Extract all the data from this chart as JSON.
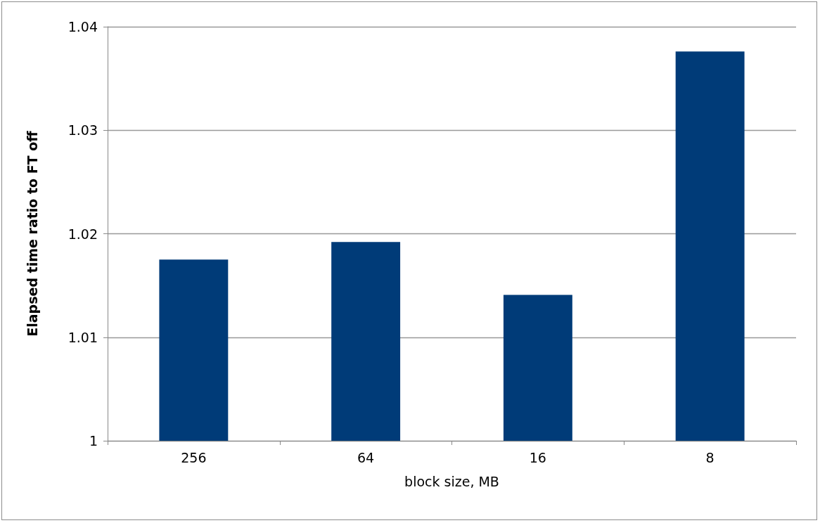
{
  "chart_data": {
    "type": "bar",
    "xlabel": "block size, MB",
    "ylabel": "Elapsed time ratio to FT off",
    "categories": [
      "256",
      "64",
      "16",
      "8"
    ],
    "values": [
      1.0175,
      1.0192,
      1.0141,
      1.0376
    ],
    "color": "#003b78",
    "ylim": [
      1,
      1.04
    ],
    "yticks": [
      1,
      1.01,
      1.02,
      1.03,
      1.04
    ],
    "grid": "y"
  }
}
